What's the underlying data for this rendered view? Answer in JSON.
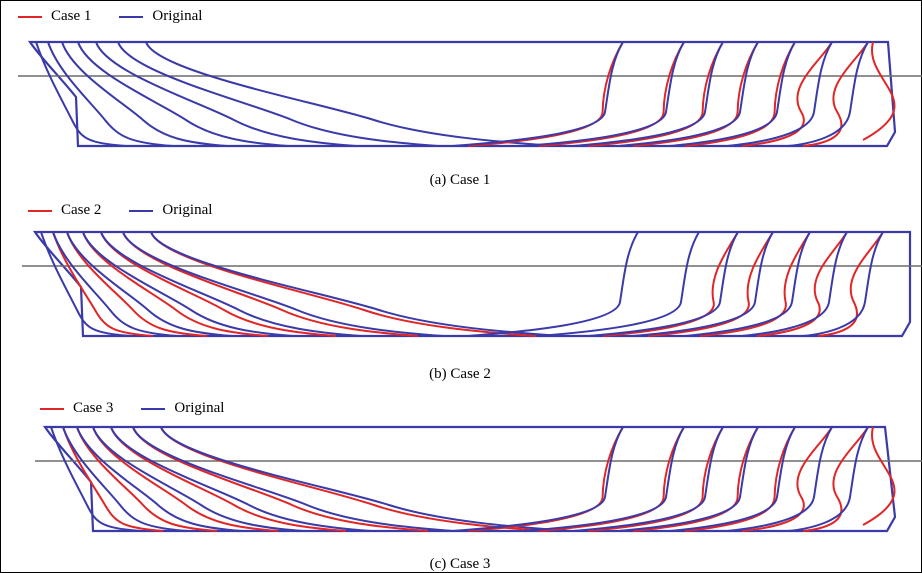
{
  "colors": {
    "case": "#e02626",
    "original": "#3a3aa8",
    "waterline": "#6b6b6b",
    "frame": "#000000"
  },
  "panels": [
    {
      "id": "a",
      "legend_case": "Case 1",
      "legend_original": "Original",
      "caption": "(a)  Case 1"
    },
    {
      "id": "b",
      "legend_case": "Case 2",
      "legend_original": "Original",
      "caption": "(b)  Case 2"
    },
    {
      "id": "c",
      "legend_case": "Case 3",
      "legend_original": "Original",
      "caption": "(c)  Case 3"
    }
  ]
}
